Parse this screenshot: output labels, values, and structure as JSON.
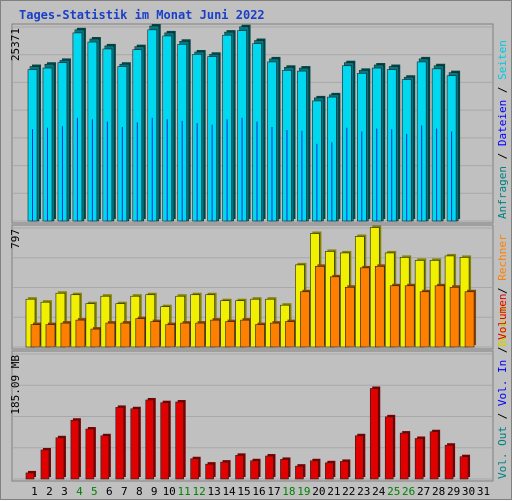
{
  "title": "Tages-Statistik im Monat Juni 2022",
  "chart_data": [
    {
      "type": "bar",
      "panel": "top",
      "ymax_label": "25371",
      "ylim": [
        0,
        25371
      ],
      "categories": [
        "1",
        "2",
        "3",
        "4",
        "5",
        "6",
        "7",
        "8",
        "9",
        "10",
        "11",
        "12",
        "13",
        "14",
        "15",
        "16",
        "17",
        "18",
        "19",
        "20",
        "21",
        "22",
        "23",
        "24",
        "25",
        "26",
        "27",
        "28",
        "29",
        "30",
        "31"
      ],
      "series": [
        {
          "name": "Anfragen",
          "color": "#008080",
          "values": [
            20200,
            20500,
            21000,
            25000,
            23800,
            22900,
            20500,
            22800,
            25500,
            24600,
            23500,
            22100,
            21800,
            24700,
            25400,
            23600,
            21200,
            20100,
            20000,
            16100,
            16500,
            20700,
            19700,
            20400,
            20200,
            18800,
            21200,
            20300,
            19400,
            null,
            null
          ]
        },
        {
          "name": "Dateien",
          "color": "#00d8f0",
          "values": [
            19800,
            20000,
            20700,
            24600,
            23400,
            22500,
            20200,
            22400,
            25000,
            24200,
            23100,
            21800,
            21500,
            24300,
            24900,
            23200,
            20800,
            19700,
            19600,
            15700,
            16200,
            20300,
            19300,
            20000,
            19800,
            18500,
            20800,
            19900,
            19000,
            null,
            null
          ]
        },
        {
          "name": "Seiten",
          "color": "#0a30d8",
          "values": [
            12000,
            12200,
            12400,
            13500,
            13300,
            13000,
            12300,
            12900,
            13500,
            13300,
            13100,
            12800,
            12600,
            13300,
            13500,
            13000,
            12300,
            11900,
            11800,
            10100,
            10300,
            12200,
            11700,
            12100,
            12000,
            11400,
            12500,
            12100,
            11700,
            null,
            null
          ]
        }
      ]
    },
    {
      "type": "bar",
      "panel": "middle",
      "ymax_label": "797",
      "ylim": [
        0,
        797
      ],
      "categories": [
        "1",
        "2",
        "3",
        "4",
        "5",
        "6",
        "7",
        "8",
        "9",
        "10",
        "11",
        "12",
        "13",
        "14",
        "15",
        "16",
        "17",
        "18",
        "19",
        "20",
        "21",
        "22",
        "23",
        "24",
        "25",
        "26",
        "27",
        "28",
        "29",
        "30",
        "31"
      ],
      "series": [
        {
          "name": "Besuche",
          "color": "#f0f000",
          "values": [
            320,
            300,
            360,
            350,
            290,
            340,
            290,
            340,
            350,
            270,
            340,
            350,
            350,
            310,
            310,
            320,
            320,
            280,
            550,
            760,
            640,
            630,
            740,
            800,
            630,
            600,
            580,
            580,
            610,
            600,
            null
          ]
        },
        {
          "name": "Rechner",
          "color": "#ff8000",
          "values": [
            150,
            150,
            160,
            180,
            120,
            160,
            160,
            190,
            170,
            150,
            160,
            160,
            180,
            170,
            180,
            150,
            160,
            170,
            370,
            540,
            470,
            400,
            530,
            540,
            410,
            410,
            370,
            410,
            400,
            370,
            null
          ]
        }
      ]
    },
    {
      "type": "bar",
      "panel": "bottom",
      "ymax_label": "185.09 MB",
      "ylim": [
        0,
        185.09
      ],
      "categories": [
        "1",
        "2",
        "3",
        "4",
        "5",
        "6",
        "7",
        "8",
        "9",
        "10",
        "11",
        "12",
        "13",
        "14",
        "15",
        "16",
        "17",
        "18",
        "19",
        "20",
        "21",
        "22",
        "23",
        "24",
        "25",
        "26",
        "27",
        "28",
        "29",
        "30",
        "31"
      ],
      "series": [
        {
          "name": "Volumen",
          "color": "#e00000",
          "values": [
            9,
            43,
            61,
            87,
            74,
            64,
            106,
            104,
            117,
            113,
            114,
            30,
            22,
            25,
            35,
            27,
            34,
            29,
            19,
            27,
            24,
            26,
            64,
            134,
            92,
            68,
            60,
            70,
            50,
            33,
            null
          ]
        }
      ]
    }
  ],
  "right_legend": {
    "top": [
      {
        "text": "Anfragen",
        "color": "#008080"
      },
      {
        "text": "Dateien",
        "color": "#0000ff"
      },
      {
        "text": "Seiten",
        "color": "#00c8e0"
      }
    ],
    "middle": [
      {
        "text": "Besuche",
        "color": "#d0d000"
      },
      {
        "text": "Rechner",
        "color": "#ff8000"
      }
    ],
    "bottom": [
      {
        "text": "Vol. Out",
        "color": "#008080"
      },
      {
        "text": "Vol. In",
        "color": "#0000ff"
      },
      {
        "text": "Volumen",
        "color": "#e00000"
      }
    ],
    "separator": " / "
  },
  "weekend_days": [
    "4",
    "5",
    "11",
    "12",
    "18",
    "19",
    "25",
    "26"
  ],
  "colors": {
    "weekday_label": "#000000",
    "weekend_label": "#008000",
    "panel_bg": "#c0c0c0",
    "frame": "#808080"
  }
}
